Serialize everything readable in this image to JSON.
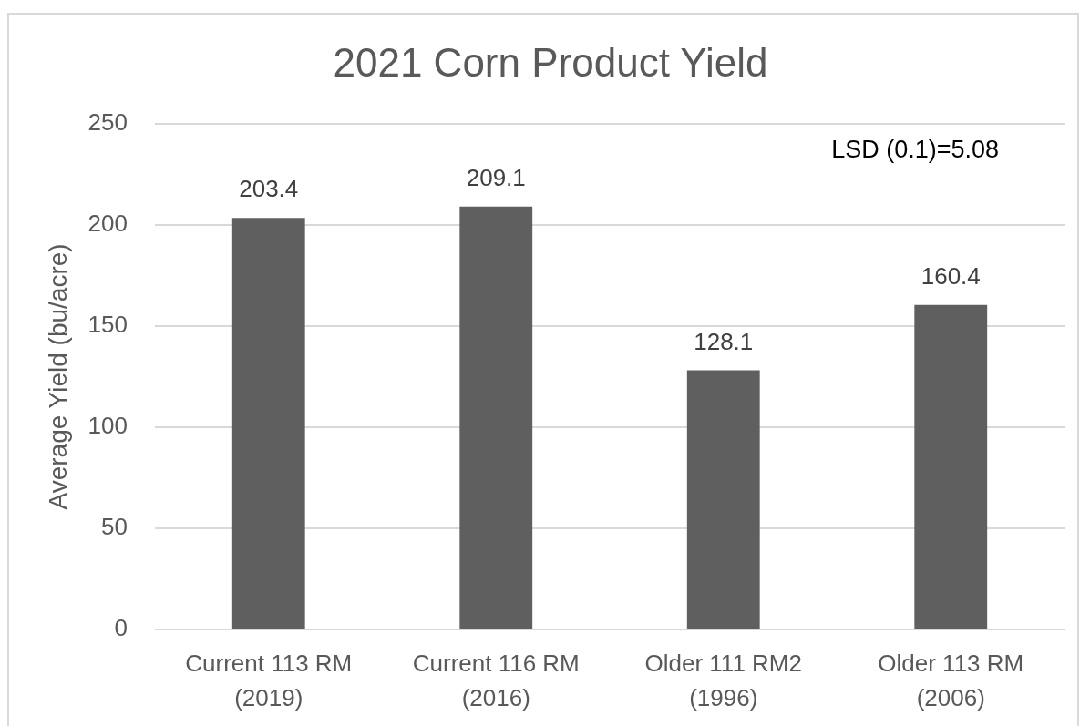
{
  "chart_data": {
    "type": "bar",
    "title": "2021 Corn Product Yield",
    "ylabel": "Average Yield (bu/acre)",
    "categories": [
      "Current 113 RM (2019)",
      "Current 116 RM (2016)",
      "Older 111 RM2 (1996)",
      "Older 113 RM (2006)"
    ],
    "values": [
      203.4,
      209.1,
      128.1,
      160.4
    ],
    "color": "#5f5f5f",
    "ylim": [
      0,
      250
    ],
    "yticks": [
      0,
      50,
      100,
      150,
      200,
      250
    ],
    "grid": "y",
    "data_labels": true,
    "annotations": [
      "LSD (0.1)=5.08"
    ]
  }
}
